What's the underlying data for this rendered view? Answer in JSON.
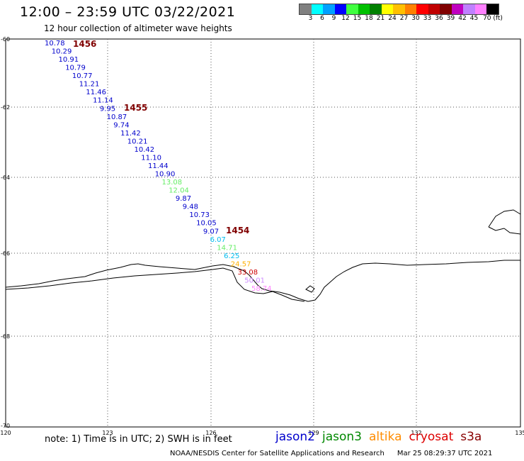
{
  "header": {
    "title": "12:00 – 23:59 UTC 03/22/2021",
    "subtitle": "12 hour collection of altimeter wave heights"
  },
  "colorbar": {
    "labels": [
      "3",
      "6",
      "9",
      "12",
      "15",
      "18",
      "21",
      "24",
      "27",
      "30",
      "33",
      "36",
      "39",
      "42",
      "45",
      "70 (ft)"
    ],
    "colors": [
      "#808080",
      "#00ffff",
      "#00a0ff",
      "#0000ff",
      "#40ff40",
      "#00c000",
      "#008000",
      "#ffff00",
      "#ffc000",
      "#ff8000",
      "#ff0000",
      "#c00000",
      "#800000",
      "#c000c0",
      "#c080ff",
      "#ff80ff",
      "#000000"
    ]
  },
  "map": {
    "lat_labels": [
      "-60",
      "-62",
      "-64",
      "-66",
      "-68",
      "-70"
    ],
    "lon_labels": [
      "120",
      "123",
      "126",
      "129",
      "132",
      "135"
    ],
    "lon_range": [
      120,
      135
    ],
    "lat_range": [
      -70,
      -60
    ],
    "pass_labels": [
      "1456",
      "1455",
      "1454"
    ],
    "track_values": [
      "10.78",
      "10.29",
      "10.91",
      "10.79",
      "10.77",
      "11.21",
      "11.46",
      "11.14",
      "9.95",
      "10.87",
      "9.74",
      "11.42",
      "10.21",
      "10.42",
      "11.10",
      "11.44",
      "10.90",
      "13.08",
      "12.04",
      "9.87",
      "9.48",
      "10.73",
      "10.05",
      "9.07",
      "6.07",
      "14.71",
      "6.25",
      "24.57",
      "33.08",
      "50.01",
      "58.74"
    ],
    "track_colors": [
      "#0000cc",
      "#0000cc",
      "#0000cc",
      "#0000cc",
      "#0000cc",
      "#0000cc",
      "#0000cc",
      "#0000cc",
      "#0000cc",
      "#0000cc",
      "#0000cc",
      "#0000cc",
      "#0000cc",
      "#0000cc",
      "#0000cc",
      "#0000cc",
      "#0000cc",
      "#66ee66",
      "#66ee66",
      "#0000cc",
      "#0000cc",
      "#0000cc",
      "#0000cc",
      "#0000cc",
      "#00bbee",
      "#66ee66",
      "#00bbee",
      "#ffb000",
      "#cc0000",
      "#cc88ff",
      "#ff88ff"
    ]
  },
  "footer": {
    "note": "note: 1) Time is in UTC; 2) SWH is in feet",
    "legend": [
      {
        "name": "jason2",
        "color": "#0000cc"
      },
      {
        "name": "jason3",
        "color": "#008800"
      },
      {
        "name": "altika",
        "color": "#ff8c00"
      },
      {
        "name": "cryosat",
        "color": "#dd0000"
      },
      {
        "name": "s3a",
        "color": "#880000"
      }
    ],
    "credit": "NOAA/NESDIS Center for Satellite Applications and Research",
    "timestamp": "Mar 25 08:29:37 UTC 2021"
  }
}
